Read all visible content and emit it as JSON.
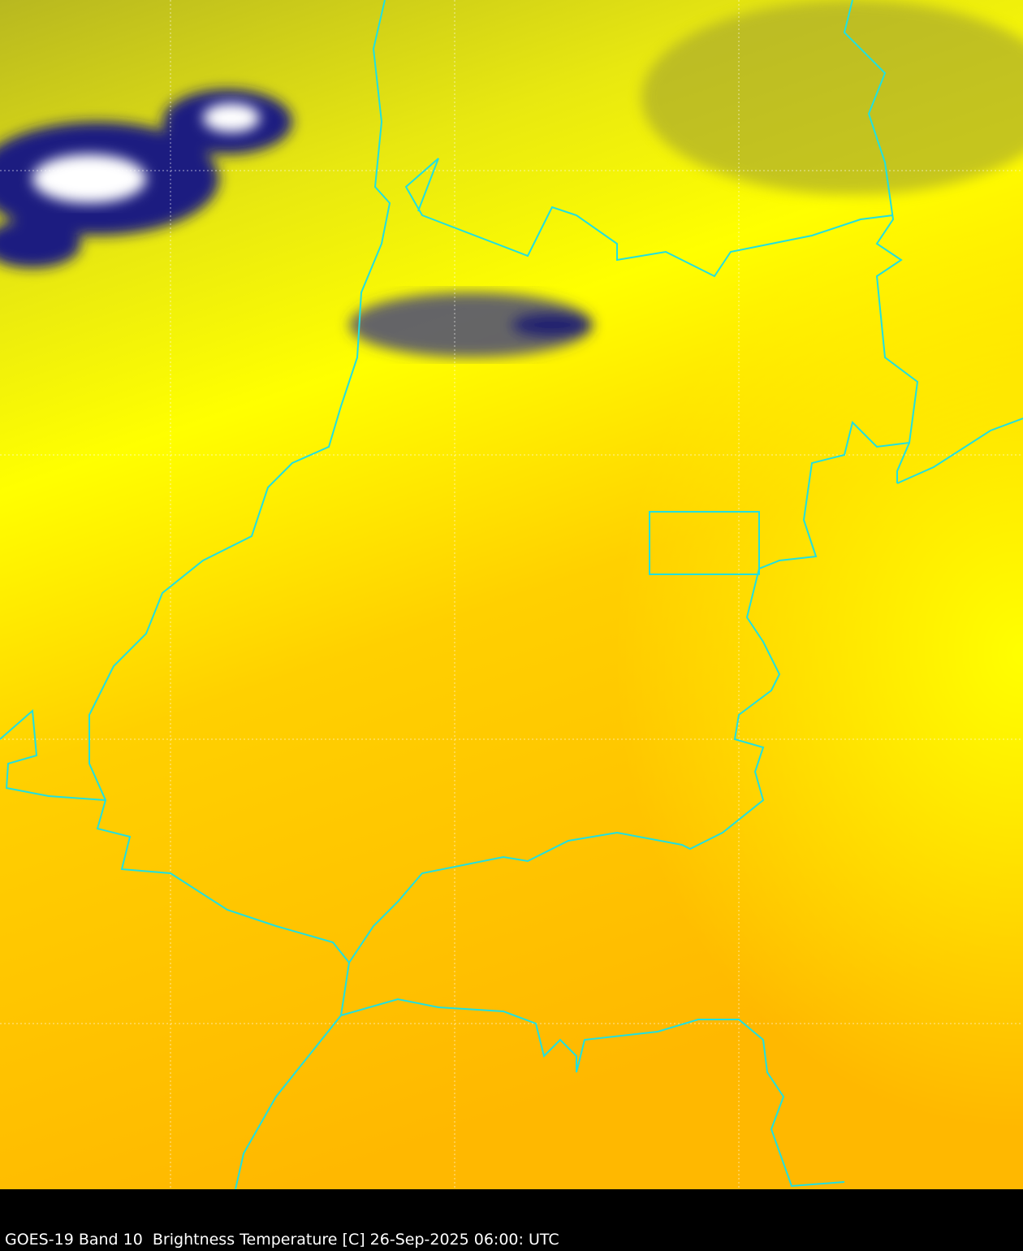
{
  "caption": "GOES-19 Band 10  Brightness Temperature [C] 26-Sep-2025 06:00: UTC",
  "colors": {
    "warm": "#ffc000",
    "mid": "#ffff00",
    "cool": "#c8c810",
    "cold": "#000080",
    "coldest": "#ffffff",
    "border": "#20e0e0",
    "grid": "#ffffff"
  }
}
